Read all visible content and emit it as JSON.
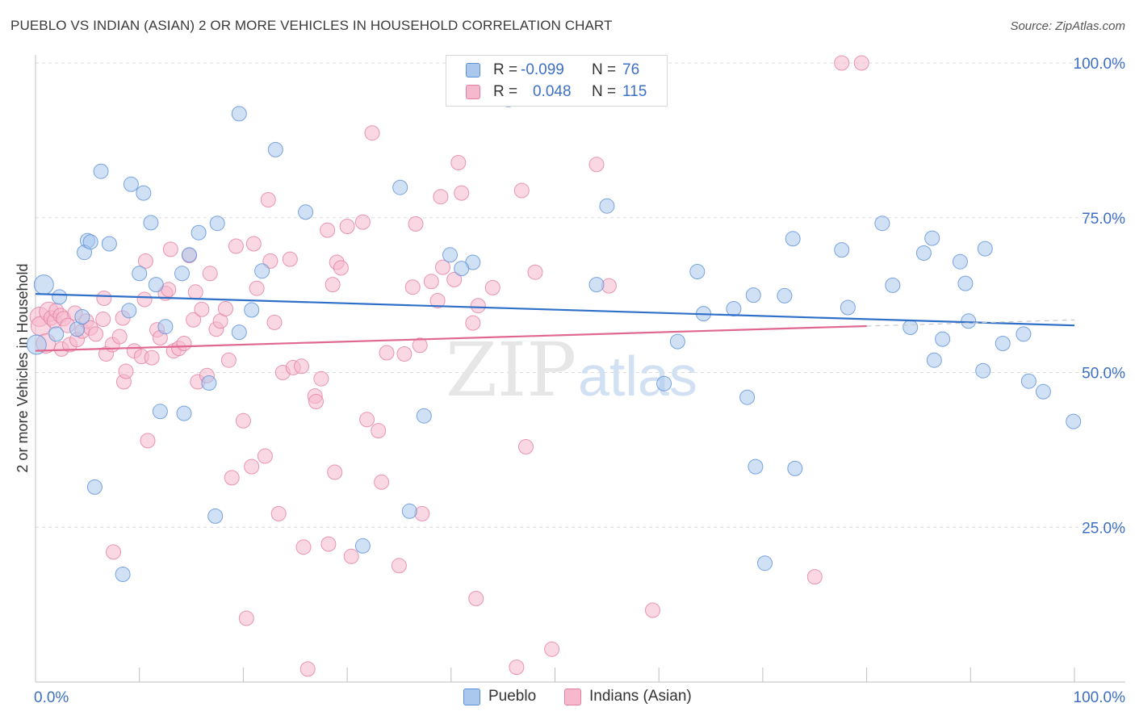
{
  "title": "PUEBLO VS INDIAN (ASIAN) 2 OR MORE VEHICLES IN HOUSEHOLD CORRELATION CHART",
  "source": "Source: ZipAtlas.com",
  "watermark": {
    "zip": "ZIP",
    "atlas": "atlas"
  },
  "legend": {
    "r_label": "R =",
    "n_label": "N =",
    "pueblo": {
      "r": "-0.099",
      "n": "76"
    },
    "indian": {
      "r": "0.048",
      "n": "115"
    }
  },
  "colors": {
    "pueblo_fill": "#aac8ee",
    "pueblo_stroke": "#5b8fd6",
    "pueblo_line": "#2f6fc8",
    "indian_fill": "#f5b8cc",
    "indian_stroke": "#e37ea0",
    "indian_line": "#e0688f",
    "tick_label": "#3d6fc4",
    "grid": "#dcdcdc"
  },
  "chart_data": {
    "type": "scatter",
    "title": "PUEBLO VS INDIAN (ASIAN) 2 OR MORE VEHICLES IN HOUSEHOLD CORRELATION CHART",
    "xlabel": "",
    "ylabel": "2 or more Vehicles in Household",
    "xlim": [
      0,
      100
    ],
    "ylim": [
      0,
      101
    ],
    "x_tick_labels": [
      "0.0%",
      "100.0%"
    ],
    "y_ticks": [
      25,
      50,
      75,
      100
    ],
    "y_tick_labels": [
      "25.0%",
      "50.0%",
      "75.0%",
      "100.0%"
    ],
    "grid": true,
    "legend_position": "top-center",
    "series": [
      {
        "name": "Pueblo",
        "r": -0.099,
        "n": 76,
        "trend": {
          "x0": 0,
          "y0": 62.7,
          "x1": 100,
          "y1": 57.6
        },
        "points": [
          [
            0.1,
            54.5
          ],
          [
            0.8,
            64.2
          ],
          [
            2.0,
            56.2
          ],
          [
            2.3,
            62.2
          ],
          [
            4.0,
            57.0
          ],
          [
            4.5,
            59.0
          ],
          [
            5.0,
            71.3
          ],
          [
            4.7,
            69.4
          ],
          [
            5.3,
            71.1
          ],
          [
            5.7,
            31.5
          ],
          [
            6.3,
            82.5
          ],
          [
            7.1,
            70.8
          ],
          [
            8.4,
            17.4
          ],
          [
            9.0,
            60.0
          ],
          [
            9.2,
            80.4
          ],
          [
            10.0,
            66.0
          ],
          [
            10.4,
            79.0
          ],
          [
            11.1,
            74.2
          ],
          [
            11.6,
            64.2
          ],
          [
            12.0,
            43.7
          ],
          [
            12.5,
            57.4
          ],
          [
            14.1,
            66.0
          ],
          [
            14.3,
            43.4
          ],
          [
            14.8,
            69.0
          ],
          [
            15.7,
            72.6
          ],
          [
            16.7,
            48.3
          ],
          [
            17.3,
            26.8
          ],
          [
            17.5,
            74.1
          ],
          [
            19.6,
            56.5
          ],
          [
            19.6,
            91.8
          ],
          [
            20.8,
            60.1
          ],
          [
            21.8,
            66.4
          ],
          [
            23.1,
            86.0
          ],
          [
            26.0,
            75.9
          ],
          [
            31.5,
            22.0
          ],
          [
            35.1,
            79.9
          ],
          [
            36.0,
            27.6
          ],
          [
            37.4,
            43.0
          ],
          [
            39.9,
            69.0
          ],
          [
            42.1,
            67.8
          ],
          [
            45.5,
            94.1
          ],
          [
            46.3,
            94.3
          ],
          [
            55.0,
            76.9
          ],
          [
            54.0,
            64.2
          ],
          [
            60.5,
            48.2
          ],
          [
            63.7,
            66.3
          ],
          [
            64.3,
            59.5
          ],
          [
            67.2,
            60.3
          ],
          [
            68.5,
            46.0
          ],
          [
            69.1,
            62.5
          ],
          [
            69.3,
            34.8
          ],
          [
            70.2,
            19.2
          ],
          [
            72.1,
            62.4
          ],
          [
            72.9,
            71.6
          ],
          [
            73.1,
            34.5
          ],
          [
            77.6,
            69.8
          ],
          [
            78.2,
            60.5
          ],
          [
            81.5,
            74.1
          ],
          [
            82.5,
            64.1
          ],
          [
            84.2,
            57.3
          ],
          [
            85.5,
            69.3
          ],
          [
            86.3,
            71.7
          ],
          [
            86.5,
            52.0
          ],
          [
            87.3,
            55.4
          ],
          [
            89.0,
            67.9
          ],
          [
            89.5,
            64.4
          ],
          [
            89.8,
            58.3
          ],
          [
            91.2,
            50.3
          ],
          [
            91.4,
            70.0
          ],
          [
            93.1,
            54.7
          ],
          [
            95.1,
            56.2
          ],
          [
            95.6,
            48.6
          ],
          [
            97.0,
            46.9
          ],
          [
            99.9,
            42.1
          ],
          [
            61.8,
            55.0
          ],
          [
            41.0,
            66.8
          ]
        ]
      },
      {
        "name": "Indians (Asian)",
        "r": 0.048,
        "n": 115,
        "trend": {
          "x0": 0,
          "y0": 53.5,
          "x1": 80,
          "y1": 57.5
        },
        "points": [
          [
            0.4,
            59.0
          ],
          [
            0.5,
            57.5
          ],
          [
            1.0,
            54.7
          ],
          [
            1.3,
            59.8
          ],
          [
            1.5,
            58.8
          ],
          [
            1.8,
            58.3
          ],
          [
            2.0,
            60.0
          ],
          [
            2.4,
            59.2
          ],
          [
            2.5,
            53.8
          ],
          [
            2.7,
            58.7
          ],
          [
            3.1,
            57.6
          ],
          [
            3.3,
            54.5
          ],
          [
            3.8,
            59.6
          ],
          [
            4.0,
            55.3
          ],
          [
            4.5,
            56.7
          ],
          [
            4.9,
            58.3
          ],
          [
            5.3,
            57.2
          ],
          [
            5.8,
            56.2
          ],
          [
            6.5,
            58.6
          ],
          [
            6.6,
            62.0
          ],
          [
            6.8,
            53.0
          ],
          [
            7.4,
            54.5
          ],
          [
            7.5,
            21.0
          ],
          [
            8.1,
            55.8
          ],
          [
            8.4,
            58.8
          ],
          [
            8.5,
            48.5
          ],
          [
            8.7,
            50.2
          ],
          [
            9.5,
            53.5
          ],
          [
            10.2,
            52.6
          ],
          [
            10.5,
            61.8
          ],
          [
            10.6,
            68.0
          ],
          [
            10.8,
            39.0
          ],
          [
            11.2,
            52.4
          ],
          [
            11.7,
            56.9
          ],
          [
            12.0,
            55.6
          ],
          [
            12.5,
            62.8
          ],
          [
            12.8,
            63.4
          ],
          [
            13.0,
            69.9
          ],
          [
            13.3,
            53.5
          ],
          [
            13.8,
            53.9
          ],
          [
            14.3,
            54.7
          ],
          [
            14.8,
            68.9
          ],
          [
            15.2,
            58.5
          ],
          [
            15.4,
            63.0
          ],
          [
            15.6,
            48.5
          ],
          [
            16.0,
            60.2
          ],
          [
            16.5,
            49.5
          ],
          [
            16.8,
            66.0
          ],
          [
            17.4,
            57.0
          ],
          [
            17.8,
            58.3
          ],
          [
            18.3,
            60.3
          ],
          [
            18.6,
            52.0
          ],
          [
            18.9,
            33.0
          ],
          [
            19.3,
            70.4
          ],
          [
            20.0,
            42.2
          ],
          [
            20.3,
            10.3
          ],
          [
            20.8,
            34.8
          ],
          [
            21.0,
            70.8
          ],
          [
            21.3,
            63.6
          ],
          [
            22.1,
            36.5
          ],
          [
            22.4,
            77.9
          ],
          [
            22.6,
            68.0
          ],
          [
            23.0,
            58.1
          ],
          [
            23.4,
            27.2
          ],
          [
            23.8,
            50.0
          ],
          [
            24.5,
            68.3
          ],
          [
            24.8,
            50.8
          ],
          [
            25.6,
            51.0
          ],
          [
            25.8,
            21.8
          ],
          [
            26.2,
            2.1
          ],
          [
            26.9,
            46.2
          ],
          [
            27.0,
            45.3
          ],
          [
            27.5,
            49.0
          ],
          [
            28.1,
            73.0
          ],
          [
            28.2,
            22.3
          ],
          [
            28.6,
            64.2
          ],
          [
            28.8,
            33.9
          ],
          [
            29.0,
            67.8
          ],
          [
            29.4,
            66.9
          ],
          [
            30.0,
            73.6
          ],
          [
            30.4,
            20.3
          ],
          [
            31.5,
            74.3
          ],
          [
            31.9,
            42.4
          ],
          [
            32.4,
            88.7
          ],
          [
            33.0,
            40.6
          ],
          [
            33.3,
            32.3
          ],
          [
            33.8,
            53.2
          ],
          [
            35.0,
            18.8
          ],
          [
            35.5,
            53.0
          ],
          [
            36.3,
            63.8
          ],
          [
            36.6,
            74.0
          ],
          [
            37.0,
            54.4
          ],
          [
            37.2,
            27.2
          ],
          [
            38.1,
            64.7
          ],
          [
            38.7,
            61.6
          ],
          [
            39.0,
            78.4
          ],
          [
            39.2,
            67.0
          ],
          [
            40.3,
            65.0
          ],
          [
            40.7,
            83.9
          ],
          [
            41.0,
            79.0
          ],
          [
            42.1,
            58.0
          ],
          [
            42.4,
            13.5
          ],
          [
            42.6,
            60.8
          ],
          [
            44.0,
            63.7
          ],
          [
            46.3,
            2.4
          ],
          [
            46.8,
            79.4
          ],
          [
            47.2,
            38.0
          ],
          [
            48.1,
            66.2
          ],
          [
            49.7,
            5.3
          ],
          [
            54.0,
            83.6
          ],
          [
            55.2,
            64.0
          ],
          [
            59.4,
            11.6
          ],
          [
            75.0,
            17.0
          ],
          [
            77.6,
            100.0
          ],
          [
            79.5,
            100.0
          ]
        ]
      }
    ]
  }
}
